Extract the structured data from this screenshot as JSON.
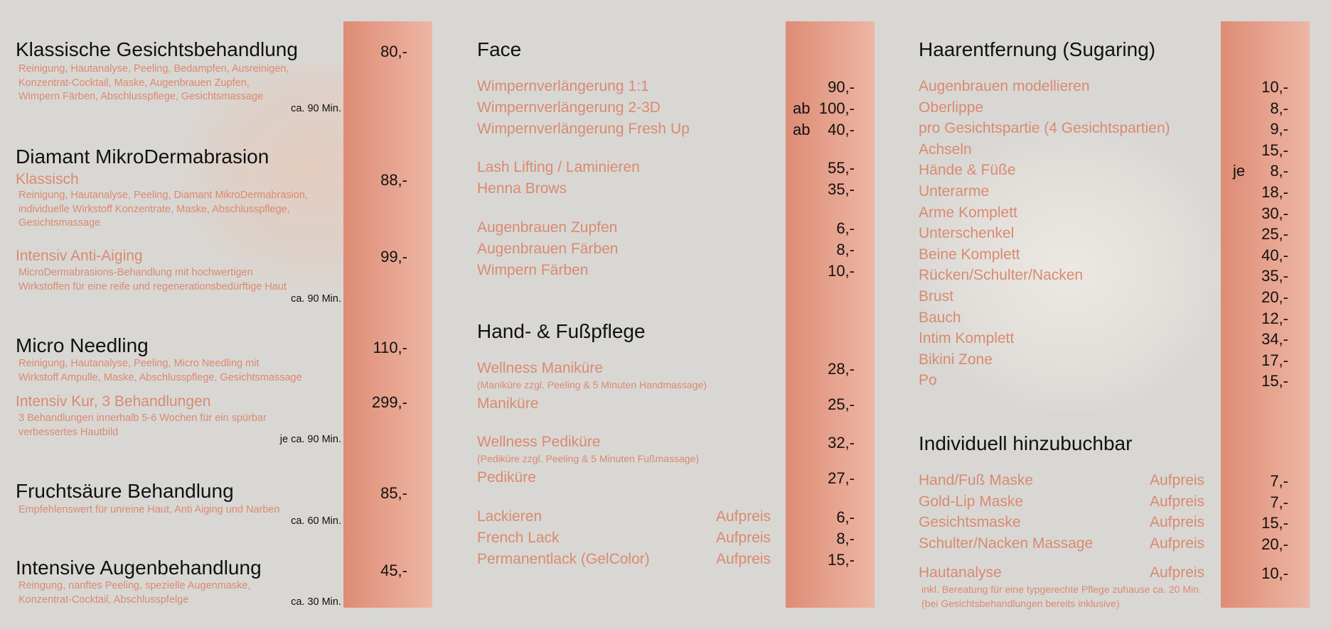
{
  "left": {
    "klassisch": {
      "title": "Klassische Gesichtsbehandlung",
      "price": "80,-",
      "desc": [
        "Reinigung, Hautanalyse, Peeling, Bedampfen, Ausreinigen,",
        "Konzentrat-Cocktail, Maske, Augenbrauen Zupfen,",
        "Wimpern Färben, Abschlusspflege, Gesichtsmassage"
      ],
      "time": "ca. 90 Min."
    },
    "diamant": {
      "title": "Diamant MikroDermabrasion",
      "klassisch_label": "Klassisch",
      "klassisch_price": "88,-",
      "klassisch_desc": [
        "Reinigung, Hautanalyse, Peeling, Diamant MikroDermabrasion,",
        "individuelle Wirkstoff Konzentrate, Maske, Abschlusspflege,",
        "Gesichtsmassage"
      ],
      "intensiv_label": "Intensiv Anti-Aiging",
      "intensiv_price": "99,-",
      "intensiv_desc": [
        "MicroDermabrasions-Behandlung mit hochwertigen",
        "Wirkstoffen für eine reife und regenerationsbedürftige Haut"
      ],
      "time": "ca. 90 Min."
    },
    "needling": {
      "title": "Micro Needling",
      "price": "110,-",
      "desc": [
        "Reinigung, Hautanalyse, Peeling, Micro Needling mit",
        "Wirkstoff Ampulle, Maske, Abschlusspflege, Gesichtsmassage"
      ],
      "kur_label": "Intensiv Kur, 3 Behandlungen",
      "kur_price": "299,-",
      "kur_desc": [
        "3 Behandlungen innerhalb 5-6 Wochen für ein spürbar",
        "verbessertes Hautbild"
      ],
      "time": "je ca. 90 Min."
    },
    "frucht": {
      "title": "Fruchtsäure Behandlung",
      "price": "85,-",
      "desc": [
        "Empfehlenswert für unreine Haut, Anti Aiging und Narben"
      ],
      "time": "ca. 60 Min."
    },
    "augen": {
      "title": "Intensive Augenbehandlung",
      "price": "45,-",
      "desc": [
        "Reingung, nanftes Peeling, spezielle Augenmaske,",
        "Konzentrat-Cocktail, Abschlusspfelge"
      ],
      "time": "ca. 30 Min."
    }
  },
  "middle": {
    "face_title": "Face",
    "face_items": [
      {
        "label": "Wimpernverlängerung 1:1",
        "prefix": "",
        "price": "90,-"
      },
      {
        "label": "Wimpernverlängerung 2-3D",
        "prefix": "ab",
        "price": "100,-"
      },
      {
        "label": "Wimpernverlängerung Fresh Up",
        "prefix": "ab",
        "price": "40,-"
      },
      {
        "label": "Lash Lifting / Laminieren",
        "prefix": "",
        "price": "55,-"
      },
      {
        "label": "Henna Brows",
        "prefix": "",
        "price": "35,-"
      },
      {
        "label": "Augenbrauen Zupfen",
        "prefix": "",
        "price": "6,-"
      },
      {
        "label": "Augenbrauen Färben",
        "prefix": "",
        "price": "8,-"
      },
      {
        "label": "Wimpern Färben",
        "prefix": "",
        "price": "10,-"
      }
    ],
    "hand_title": "Hand- & Fußpflege",
    "hand_items": [
      {
        "label": "Wellness Maniküre",
        "price": "28,-",
        "note": "(Maniküre zzgl. Peeling & 5 Minuten Handmassage)"
      },
      {
        "label": "Maniküre",
        "price": "25,-"
      },
      {
        "label": "Wellness Pediküre",
        "price": "32,-",
        "note": "(Pediküre zzgl. Peeling & 5 Minuten Fußmassage)"
      },
      {
        "label": "Pediküre",
        "price": "27,-"
      }
    ],
    "extra_items": [
      {
        "label": "Lackieren",
        "auf": "Aufpreis",
        "price": "6,-"
      },
      {
        "label": "French Lack",
        "auf": "Aufpreis",
        "price": "8,-"
      },
      {
        "label": "Permanentlack (GelColor)",
        "auf": "Aufpreis",
        "price": "15,-"
      }
    ]
  },
  "right": {
    "sugar_title": "Haarentfernung (Sugaring)",
    "sugar_items": [
      {
        "label": "Augenbrauen modellieren",
        "prefix": "",
        "price": "10,-"
      },
      {
        "label": "Oberlippe",
        "prefix": "",
        "price": "8,-"
      },
      {
        "label": "pro Gesichtspartie (4 Gesichtspartien)",
        "prefix": "",
        "price": "9,-"
      },
      {
        "label": "Achseln",
        "prefix": "",
        "price": "15,-"
      },
      {
        "label": "Hände & Füße",
        "prefix": "je",
        "price": "8,-"
      },
      {
        "label": "Unterarme",
        "prefix": "",
        "price": "18,-"
      },
      {
        "label": "Arme Komplett",
        "prefix": "",
        "price": "30,-"
      },
      {
        "label": "Unterschenkel",
        "prefix": "",
        "price": "25,-"
      },
      {
        "label": "Beine Komplett",
        "prefix": "",
        "price": "40,-"
      },
      {
        "label": "Rücken/Schulter/Nacken",
        "prefix": "",
        "price": "35,-"
      },
      {
        "label": "Brust",
        "prefix": "",
        "price": "20,-"
      },
      {
        "label": "Bauch",
        "prefix": "",
        "price": "12,-"
      },
      {
        "label": "Intim Komplett",
        "prefix": "",
        "price": "34,-"
      },
      {
        "label": "Bikini Zone",
        "prefix": "",
        "price": "17,-"
      },
      {
        "label": "Po",
        "prefix": "",
        "price": "15,-"
      }
    ],
    "indiv_title": "Individuell hinzubuchbar",
    "indiv_items": [
      {
        "label": "Hand/Fuß Maske",
        "auf": "Aufpreis",
        "price": "7,-"
      },
      {
        "label": "Gold-Lip Maske",
        "auf": "Aufpreis",
        "price": "7,-"
      },
      {
        "label": "Gesichtsmaske",
        "auf": "Aufpreis",
        "price": "15,-"
      },
      {
        "label": "Schulter/Nacken Massage",
        "auf": "Aufpreis",
        "price": "20,-"
      }
    ],
    "haut": {
      "label": "Hautanalyse",
      "auf": "Aufpreis",
      "price": "10,-",
      "notes": [
        "inkl. Bereatung für eine typgerechte Pflege zuhause ca. 20 Min.",
        "(bei Gesichtsbehandlungen bereits inklusive)"
      ]
    }
  }
}
